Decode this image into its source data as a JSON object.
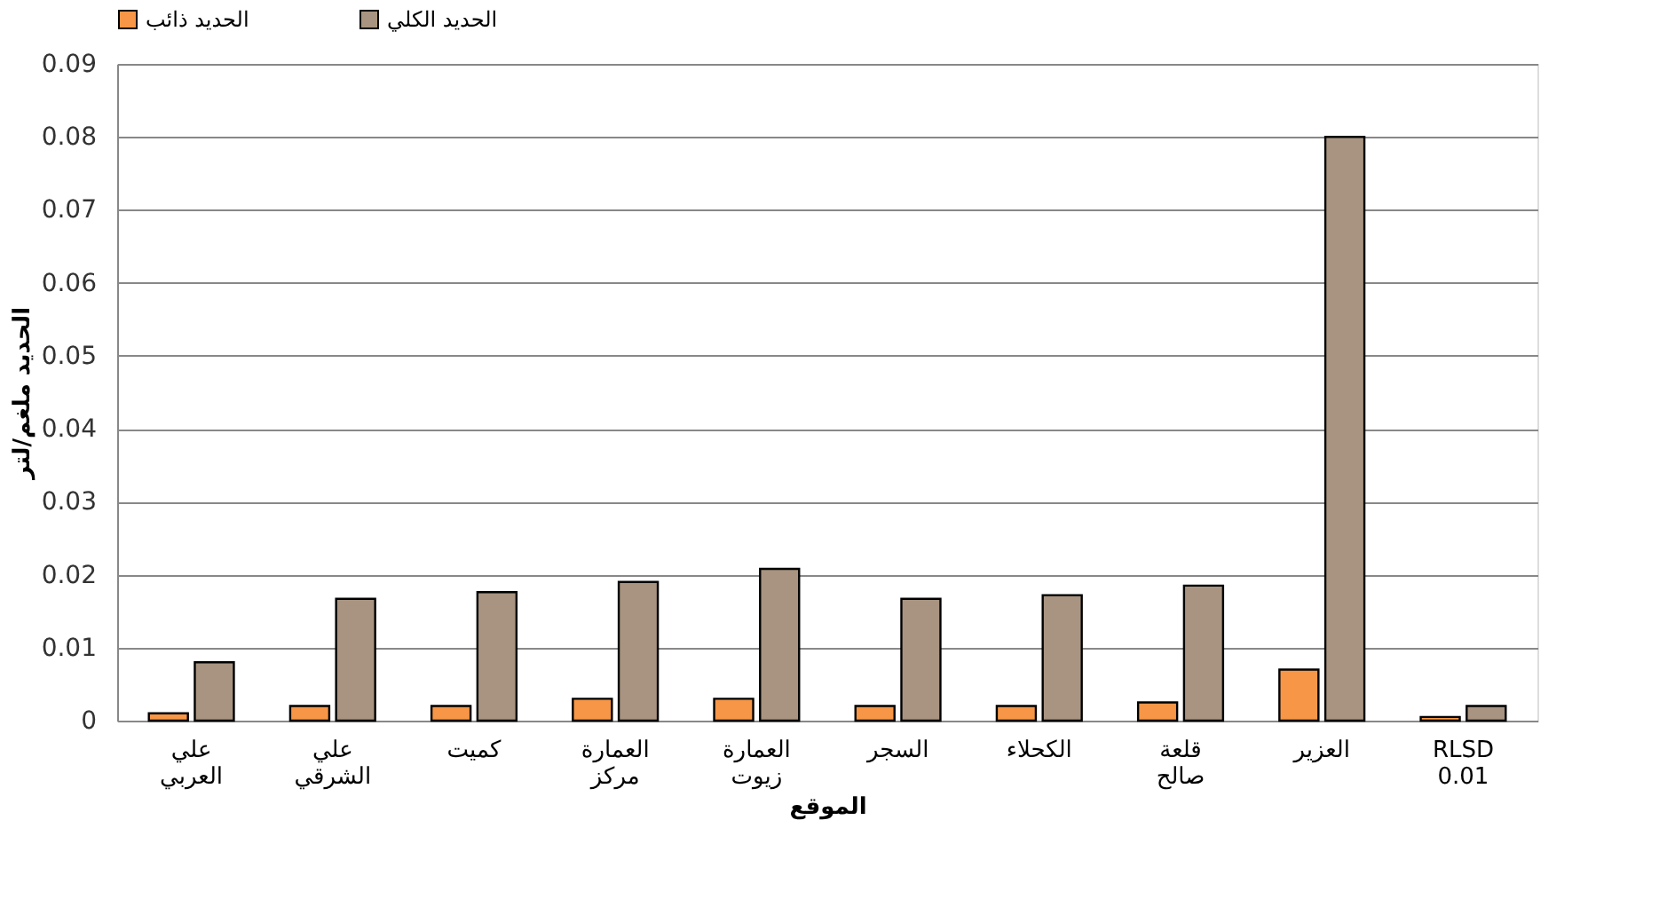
{
  "chart_data": {
    "type": "bar",
    "xlabel": "الموقع",
    "ylabel": "الحديد ملغم/لتر",
    "categories": [
      "علي العربي",
      "علي الشرقي",
      "كميت",
      "العمارة مركز",
      "العمارة زيوت",
      "السجر",
      "الكحلاء",
      "قلعة صالح",
      "العزير",
      "RLSD 0.01"
    ],
    "series": [
      {
        "name": "الحديد ذائب",
        "color": "#f79646",
        "values": [
          0.001,
          0.002,
          0.002,
          0.003,
          0.003,
          0.002,
          0.002,
          0.0025,
          0.007,
          0.0005
        ]
      },
      {
        "name": "الحديد الكلي",
        "color": "#a89480",
        "values": [
          0.008,
          0.0167,
          0.0176,
          0.019,
          0.0208,
          0.0167,
          0.0172,
          0.0185,
          0.08,
          0.002
        ]
      }
    ],
    "ylim": [
      0,
      0.09
    ],
    "yticks": [
      0,
      0.01,
      0.02,
      0.03,
      0.04,
      0.05,
      0.06,
      0.07,
      0.08,
      0.09
    ],
    "grid": "y",
    "legend": "top"
  }
}
